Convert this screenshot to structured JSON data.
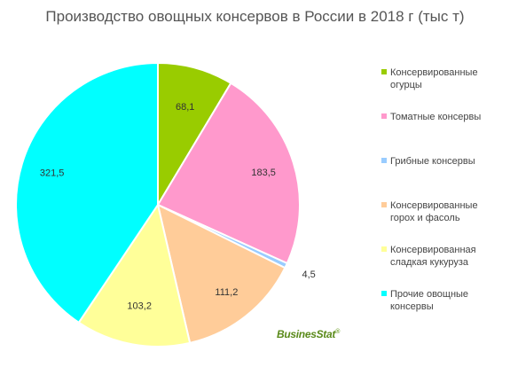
{
  "chart_data": {
    "type": "pie",
    "title": "Производство овощных консервов в России в 2018 г (тыс т)",
    "slices": [
      {
        "label": "Консервированные огурцы",
        "value": 68.1,
        "display": "68,1",
        "color": "#99cc00"
      },
      {
        "label": "Томатные консервы",
        "value": 183.5,
        "display": "183,5",
        "color": "#ff99cc"
      },
      {
        "label": "Грибные консервы",
        "value": 4.5,
        "display": "4,5",
        "color": "#99ccff"
      },
      {
        "label": "Консервированные горох и фасоль",
        "value": 111.2,
        "display": "111,2",
        "color": "#ffcc99"
      },
      {
        "label": "Консервированная сладкая кукуруза",
        "value": 103.2,
        "display": "103,2",
        "color": "#ffff99"
      },
      {
        "label": "Прочие овощные консервы",
        "value": 321.5,
        "display": "321,5",
        "color": "#00ffff"
      }
    ],
    "legend_position": "right"
  },
  "legend": {
    "items": [
      {
        "line1": "Консервированные",
        "line2": "огурцы"
      },
      {
        "line1": "Томатные консервы",
        "line2": ""
      },
      {
        "line1": "Грибные консервы",
        "line2": ""
      },
      {
        "line1": "Консервированные",
        "line2": "горох и фасоль"
      },
      {
        "line1": "Консервированная",
        "line2": "сладкая кукуруза"
      },
      {
        "line1": "Прочие овощные",
        "line2": "консервы"
      }
    ]
  },
  "branding": {
    "name": "BusinesStat",
    "mark": "®"
  }
}
